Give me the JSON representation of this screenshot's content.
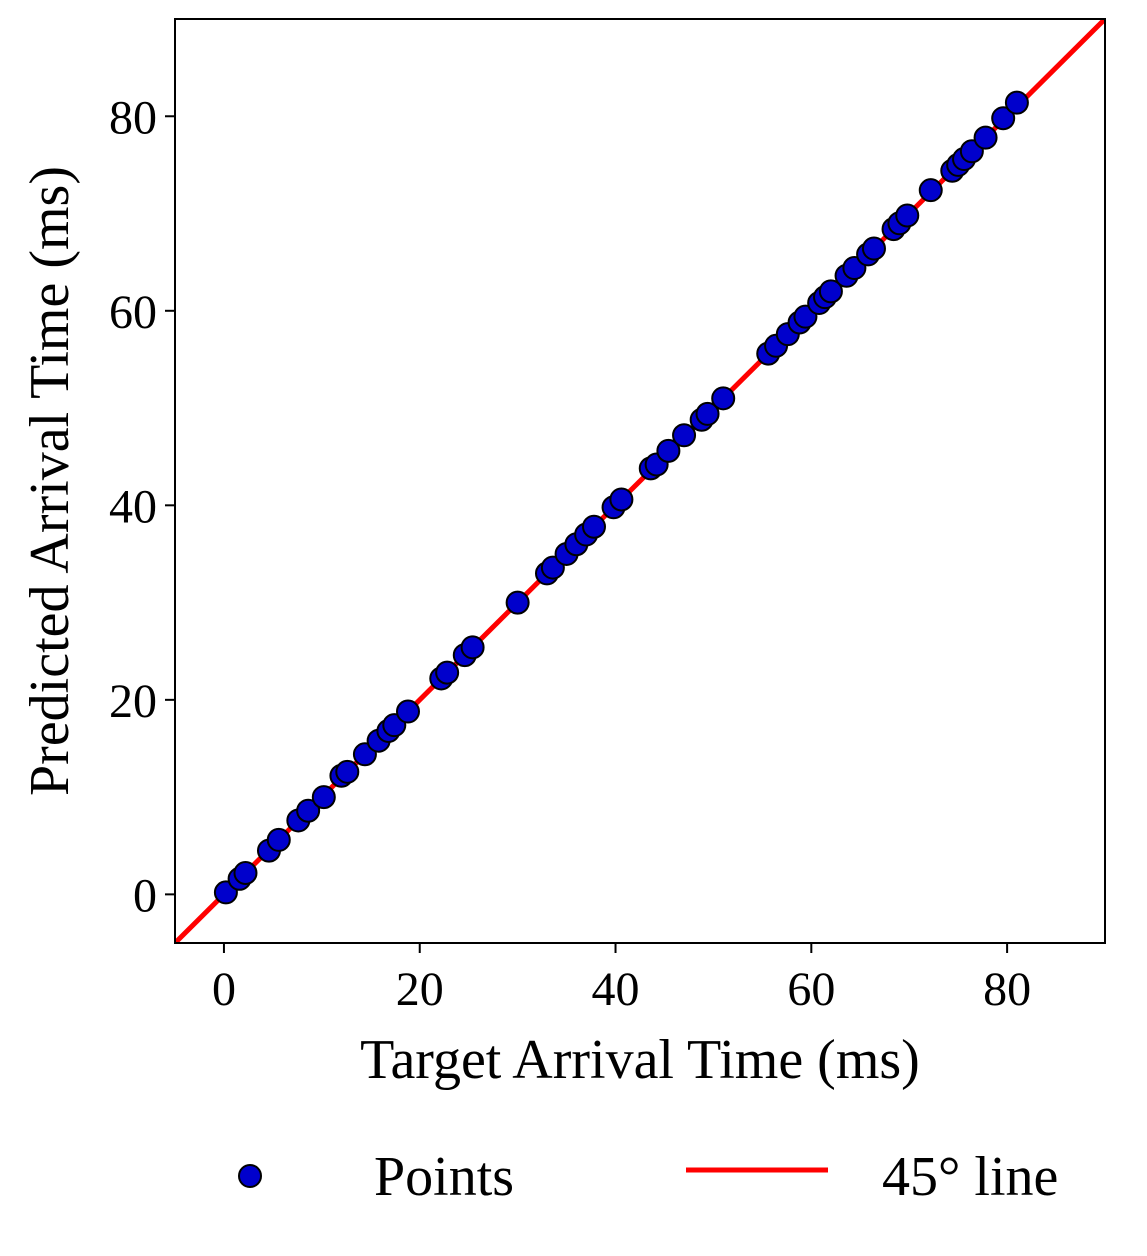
{
  "chart_data": {
    "type": "scatter",
    "xlabel": "Target Arrival Time (ms)",
    "ylabel": "Predicted Arrival Time (ms)",
    "xlim": [
      -5,
      90
    ],
    "ylim": [
      -5,
      90
    ],
    "xticks": [
      0,
      20,
      40,
      60,
      80
    ],
    "yticks": [
      0,
      20,
      40,
      60,
      80
    ],
    "grid": false,
    "legend_position": "bottom",
    "series": [
      {
        "name": "Points",
        "kind": "scatter",
        "color": "#0000cc",
        "edge_color": "#000000",
        "points": [
          [
            0.2,
            0.2
          ],
          [
            1.6,
            1.6
          ],
          [
            2.2,
            2.2
          ],
          [
            4.6,
            4.5
          ],
          [
            5.6,
            5.6
          ],
          [
            7.6,
            7.6
          ],
          [
            8.6,
            8.6
          ],
          [
            10.2,
            10.0
          ],
          [
            12.0,
            12.2
          ],
          [
            12.6,
            12.6
          ],
          [
            14.4,
            14.4
          ],
          [
            15.8,
            15.8
          ],
          [
            16.8,
            16.8
          ],
          [
            17.4,
            17.4
          ],
          [
            18.8,
            18.8
          ],
          [
            22.2,
            22.2
          ],
          [
            22.8,
            22.8
          ],
          [
            24.6,
            24.6
          ],
          [
            25.4,
            25.4
          ],
          [
            30.0,
            30.0
          ],
          [
            33.0,
            33.0
          ],
          [
            33.6,
            33.6
          ],
          [
            35.0,
            35.0
          ],
          [
            36.0,
            36.0
          ],
          [
            37.0,
            37.0
          ],
          [
            37.8,
            37.8
          ],
          [
            39.8,
            39.8
          ],
          [
            40.6,
            40.6
          ],
          [
            43.6,
            43.8
          ],
          [
            44.2,
            44.2
          ],
          [
            45.4,
            45.6
          ],
          [
            47.0,
            47.2
          ],
          [
            48.8,
            48.8
          ],
          [
            49.4,
            49.4
          ],
          [
            51.0,
            51.0
          ],
          [
            55.6,
            55.6
          ],
          [
            56.4,
            56.4
          ],
          [
            57.6,
            57.6
          ],
          [
            58.8,
            58.8
          ],
          [
            59.4,
            59.4
          ],
          [
            60.8,
            60.8
          ],
          [
            61.4,
            61.4
          ],
          [
            62.0,
            62.0
          ],
          [
            63.6,
            63.6
          ],
          [
            64.4,
            64.4
          ],
          [
            65.8,
            65.8
          ],
          [
            66.4,
            66.4
          ],
          [
            68.4,
            68.4
          ],
          [
            69.0,
            69.0
          ],
          [
            69.8,
            69.8
          ],
          [
            72.2,
            72.4
          ],
          [
            74.4,
            74.4
          ],
          [
            75.0,
            75.0
          ],
          [
            75.6,
            75.6
          ],
          [
            76.4,
            76.4
          ],
          [
            77.8,
            77.8
          ],
          [
            79.6,
            79.8
          ],
          [
            81.0,
            81.4
          ]
        ]
      },
      {
        "name": "45° line",
        "kind": "line",
        "color": "#ff0000",
        "x": [
          -5,
          90
        ],
        "y": [
          -5,
          90
        ]
      }
    ]
  }
}
